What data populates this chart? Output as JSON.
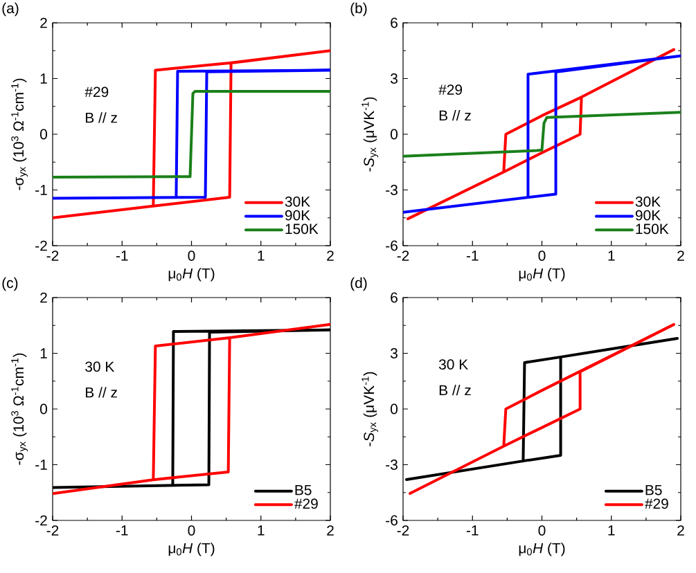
{
  "chart_data": [
    {
      "type": "line",
      "title": "(a)",
      "xlabel": "μ$_{0}$*H* (T)",
      "ylabel": "-σ$_{yx}$ (10$^{3}$ Ω$^{-1}$cm$^{-1}$)",
      "annotations": [
        "#29",
        "B // z"
      ],
      "legend": "bottom right",
      "xlim": [
        -2,
        2
      ],
      "ylim": [
        -2,
        2
      ],
      "xticks": [
        -2,
        -1,
        0,
        1,
        2
      ],
      "yticks": [
        -2,
        -1,
        0,
        1,
        2
      ],
      "series": [
        {
          "name": "30K",
          "color": "#ff0000",
          "x": [
            -2,
            -0.55,
            0.55,
            0.57,
            2,
            0.55,
            -0.52,
            -0.55
          ],
          "values": [
            -1.5,
            -1.29,
            -1.13,
            1.28,
            1.5,
            1.28,
            1.15,
            -1.27
          ]
        },
        {
          "name": "90K",
          "color": "#0000ff",
          "x": [
            -2,
            0.2,
            0.22,
            2,
            -0.2,
            -0.22
          ],
          "values": [
            -1.15,
            -1.13,
            1.12,
            1.15,
            1.13,
            -1.1
          ]
        },
        {
          "name": "150K",
          "color": "#1a801a",
          "x": [
            -2,
            -0.02,
            0.02,
            0.05,
            2
          ],
          "values": [
            -0.77,
            -0.76,
            0.73,
            0.77,
            0.77
          ]
        }
      ]
    },
    {
      "type": "line",
      "title": "(b)",
      "xlabel": "μ$_{0}$*H* (T)",
      "ylabel": "-*S*$_{yx}$ (μVK$^{-1}$)",
      "annotations": [
        "#29",
        "B // z"
      ],
      "legend": "bottom right",
      "xlim": [
        -2,
        2
      ],
      "ylim": [
        -6,
        6
      ],
      "xticks": [
        -2,
        -1,
        0,
        1,
        2
      ],
      "yticks": [
        -6,
        -3,
        0,
        3,
        6
      ],
      "series": [
        {
          "name": "30K",
          "color": "#ff0000",
          "x": [
            -1.93,
            -0.55,
            0,
            0.55,
            0.57,
            1.9,
            0.57,
            0,
            -0.52,
            -0.55
          ],
          "values": [
            -4.55,
            -2.03,
            -1.0,
            0.0,
            2.0,
            4.56,
            2.0,
            1.0,
            0.0,
            -2.0
          ]
        },
        {
          "name": "90K",
          "color": "#0000ff",
          "x": [
            -2,
            0.2,
            0.2,
            2,
            -0.2,
            -0.2
          ],
          "values": [
            -4.2,
            -3.22,
            3.35,
            4.22,
            3.23,
            -3.4
          ]
        },
        {
          "name": "150K",
          "color": "#1a801a",
          "x": [
            -2,
            -0.07,
            0,
            0.03,
            0.07,
            2
          ],
          "values": [
            -1.18,
            -0.88,
            -0.85,
            0.6,
            0.9,
            1.18
          ]
        }
      ]
    },
    {
      "type": "line",
      "title": "(c)",
      "xlabel": "μ$_{0}$*H* (T)",
      "ylabel": "-σ$_{yx}$ (10$^{3}$ Ω$^{-1}$cm$^{-1}$)",
      "annotations": [
        "30 K",
        "B // z"
      ],
      "legend": "bottom right",
      "xlim": [
        -2,
        2
      ],
      "ylim": [
        -2,
        2
      ],
      "xticks": [
        -2,
        -1,
        0,
        1,
        2
      ],
      "yticks": [
        -2,
        -1,
        0,
        1,
        2
      ],
      "series": [
        {
          "name": "B5",
          "color": "#000000",
          "x": [
            -2,
            0.25,
            0.26,
            2,
            -0.26,
            -0.27
          ],
          "values": [
            -1.41,
            -1.36,
            1.38,
            1.42,
            1.39,
            -1.36
          ]
        },
        {
          "name": "#29",
          "color": "#ff0000",
          "x": [
            -2,
            -0.55,
            0.53,
            0.55,
            2,
            0.55,
            -0.52,
            -0.55
          ],
          "values": [
            -1.52,
            -1.27,
            -1.13,
            1.28,
            1.52,
            1.28,
            1.13,
            -1.27
          ]
        }
      ]
    },
    {
      "type": "line",
      "title": "(d)",
      "xlabel": "μ$_{0}$*H* (T)",
      "ylabel": "-*S*$_{yx}$ (μVK$^{-1}$)",
      "annotations": [
        "30 K",
        "B // z"
      ],
      "legend": "bottom right",
      "xlim": [
        -2,
        2
      ],
      "ylim": [
        -6,
        6
      ],
      "xticks": [
        -2,
        -1,
        0,
        1,
        2
      ],
      "yticks": [
        -6,
        -3,
        0,
        3,
        6
      ],
      "series": [
        {
          "name": "B5",
          "color": "#000000",
          "x": [
            -1.95,
            -0.27,
            0.27,
            0.27,
            1.95,
            0.27,
            -0.25,
            -0.27
          ],
          "values": [
            -3.8,
            -2.8,
            -2.5,
            2.8,
            3.8,
            2.8,
            2.5,
            -2.8
          ]
        },
        {
          "name": "#29",
          "color": "#ff0000",
          "x": [
            -1.9,
            -0.55,
            0,
            0.55,
            0.55,
            1.9,
            0,
            -0.52,
            -0.55
          ],
          "values": [
            -4.55,
            -2.0,
            -1.0,
            0.0,
            2.0,
            4.55,
            1.0,
            0.0,
            -2.0
          ]
        }
      ]
    }
  ]
}
